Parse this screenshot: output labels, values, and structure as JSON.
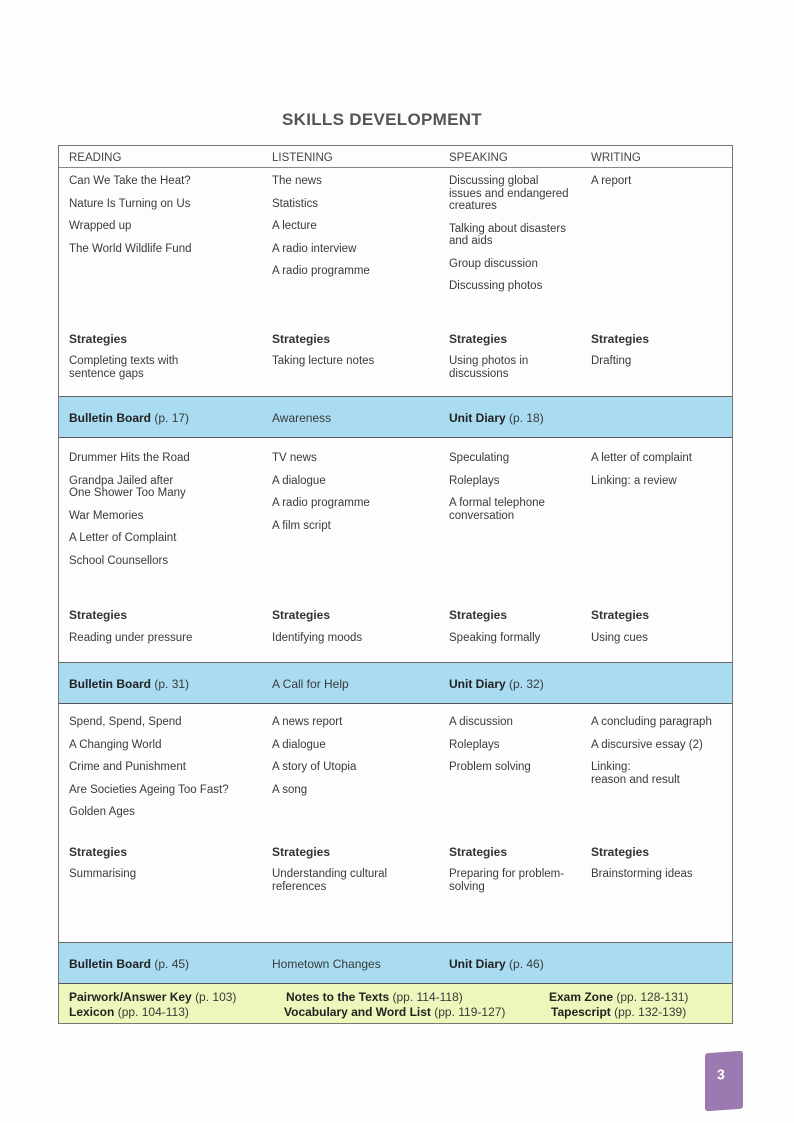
{
  "title": "SKILLS DEVELOPMENT",
  "headers": [
    "READING",
    "LISTENING",
    "SPEAKING",
    "WRITING"
  ],
  "units": [
    {
      "columns": [
        [
          "Can We Take the Heat?",
          "Nature Is Turning on Us",
          "Wrapped up",
          "The World Wildlife Fund"
        ],
        [
          "The news",
          "Statistics",
          "A lecture",
          "A radio interview",
          "A radio programme"
        ],
        [
          "Discussing global\nissues and endangered\ncreatures",
          "Talking about disasters\nand aids",
          "Group discussion",
          "Discussing photos"
        ],
        [
          "A report"
        ]
      ],
      "strategies_label": "Strategies",
      "strategies": [
        "Completing texts with\nsentence gaps",
        "Taking lecture notes",
        "Using photos in\ndiscussions",
        "Drafting"
      ],
      "band": {
        "bulletin": "Bulletin Board",
        "bulletin_page": "(p. 17)",
        "middle": "Awareness",
        "diary": "Unit Diary",
        "diary_page": "(p. 18)"
      }
    },
    {
      "columns": [
        [
          "Drummer Hits the Road",
          "Grandpa Jailed after\nOne Shower Too Many",
          "War Memories",
          "A Letter of Complaint",
          "School Counsellors"
        ],
        [
          "TV news",
          "A dialogue",
          "A radio programme",
          "A film script"
        ],
        [
          "Speculating",
          "Roleplays",
          "A formal telephone\nconversation"
        ],
        [
          "A letter of complaint",
          "Linking: a review"
        ]
      ],
      "strategies_label": "Strategies",
      "strategies": [
        "Reading under pressure",
        "Identifying moods",
        "Speaking formally",
        "Using cues"
      ],
      "band": {
        "bulletin": "Bulletin Board",
        "bulletin_page": "(p. 31)",
        "middle": "A Call for Help",
        "diary": "Unit Diary",
        "diary_page": "(p. 32)"
      }
    },
    {
      "columns": [
        [
          "Spend, Spend, Spend",
          "A Changing World",
          "Crime and Punishment",
          "Are Societies Ageing Too Fast?",
          "Golden Ages"
        ],
        [
          "A news report",
          "A dialogue",
          "A story of Utopia",
          "A song"
        ],
        [
          "A discussion",
          "Roleplays",
          "Problem solving"
        ],
        [
          "A concluding paragraph",
          "A discursive essay (2)",
          "Linking:\n   reason and result"
        ]
      ],
      "strategies_label": "Strategies",
      "strategies": [
        "Summarising",
        "Understanding cultural\nreferences",
        "Preparing for problem-\nsolving",
        "Brainstorming ideas"
      ],
      "band": {
        "bulletin": "Bulletin Board",
        "bulletin_page": "(p. 45)",
        "middle": "Hometown Changes",
        "diary": "Unit Diary",
        "diary_page": "(p. 46)"
      }
    }
  ],
  "footer": [
    {
      "label": "Pairwork/Answer Key",
      "pages": "(p. 103)"
    },
    {
      "label": "Lexicon",
      "pages": "(pp. 104-113)"
    },
    {
      "label": "Notes to the Texts",
      "pages": "(pp. 114-118)"
    },
    {
      "label": "Vocabulary and Word List",
      "pages": "(pp. 119-127)"
    },
    {
      "label": "Exam Zone",
      "pages": "(pp. 128-131)"
    },
    {
      "label": "Tapescript",
      "pages": "(pp. 132-139)"
    }
  ],
  "page_number": "3",
  "colors": {
    "band": "#a9dcf1",
    "footer": "#eef6bb",
    "badge": "#9a7ab0"
  }
}
